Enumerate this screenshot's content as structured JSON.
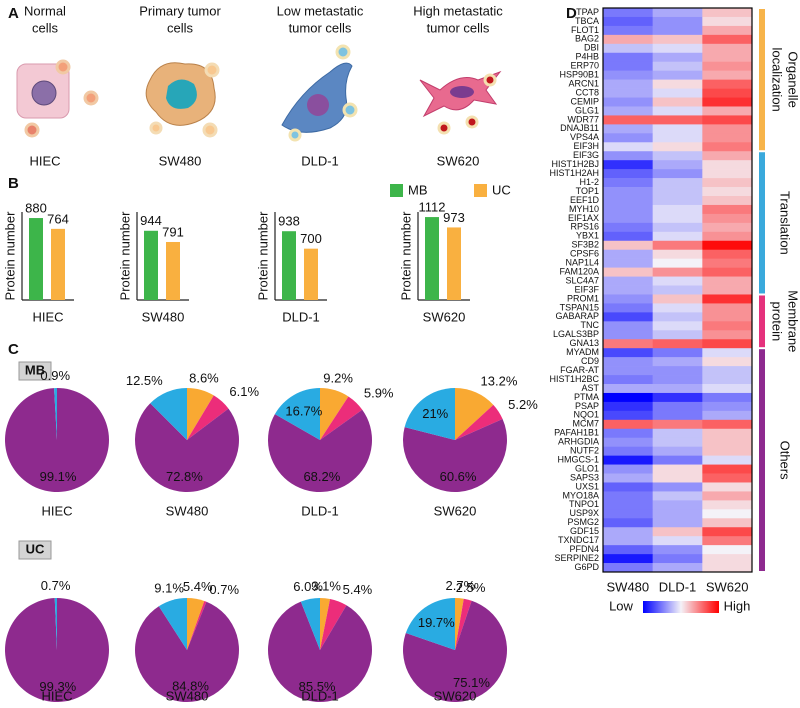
{
  "panel_labels": [
    "A",
    "B",
    "C",
    "D"
  ],
  "cells": [
    {
      "title": [
        "Normal",
        "cells"
      ],
      "line": "HIEC"
    },
    {
      "title": [
        "Primary tumor",
        "cells"
      ],
      "line": "SW480"
    },
    {
      "title": [
        "Low metastatic",
        "tumor cells"
      ],
      "line": "DLD-1"
    },
    {
      "title": [
        "High metastatic",
        "tumor cells"
      ],
      "line": "SW620"
    }
  ],
  "legend": [
    {
      "name": "MB",
      "color": "#3db54a"
    },
    {
      "name": "UC",
      "color": "#f9b040"
    }
  ],
  "pie_groups": [
    "MB",
    "UC"
  ],
  "chart_data": [
    {
      "type": "bar",
      "xlabel": "HIEC",
      "ylabel": "Protein number",
      "values": [
        880,
        764
      ],
      "ylim": [
        0,
        945
      ]
    },
    {
      "type": "bar",
      "xlabel": "SW480",
      "ylabel": "Protein number",
      "values": [
        944,
        791
      ],
      "ylim": [
        0,
        1200
      ]
    },
    {
      "type": "bar",
      "xlabel": "DLD-1",
      "ylabel": "Protein number",
      "values": [
        938,
        700
      ],
      "ylim": [
        0,
        1200
      ]
    },
    {
      "type": "bar",
      "xlabel": "SW620",
      "ylabel": "Protein number",
      "values": [
        1112,
        973
      ],
      "ylim": [
        0,
        1180
      ]
    },
    {
      "type": "pie",
      "label": "HIEC",
      "values": [
        99.1,
        0.9
      ],
      "value_labels": [
        "99.1%",
        "0.9%"
      ],
      "colors": [
        "#8e2a8e",
        "#29abe2"
      ]
    },
    {
      "type": "pie",
      "label": "SW480",
      "values": [
        8.6,
        6.1,
        72.8,
        12.5
      ],
      "value_labels": [
        "8.6%",
        "6.1%",
        "72.8%",
        "12.5%"
      ],
      "colors": [
        "#f9a932",
        "#ec2d7a",
        "#8e2a8e",
        "#29abe2"
      ]
    },
    {
      "type": "pie",
      "label": "DLD-1",
      "values": [
        9.2,
        5.9,
        68.2,
        16.7
      ],
      "value_labels": [
        "9.2%",
        "5.9%",
        "68.2%",
        "16.7%"
      ],
      "colors": [
        "#f9a932",
        "#ec2d7a",
        "#8e2a8e",
        "#29abe2"
      ]
    },
    {
      "type": "pie",
      "label": "SW620",
      "values": [
        13.2,
        5.2,
        60.6,
        21
      ],
      "value_labels": [
        "13.2%",
        "5.2%",
        "60.6%",
        "21%"
      ],
      "colors": [
        "#f9a932",
        "#ec2d7a",
        "#8e2a8e",
        "#29abe2"
      ]
    },
    {
      "type": "pie",
      "label": "HIEC",
      "values": [
        99.3,
        0.7
      ],
      "value_labels": [
        "99.3%",
        "0.7%"
      ],
      "colors": [
        "#8e2a8e",
        "#29abe2"
      ]
    },
    {
      "type": "pie",
      "label": "SW480",
      "values": [
        5.4,
        0.7,
        84.8,
        9.1
      ],
      "value_labels": [
        "5.4%",
        "0.7%",
        "84.8%",
        "9.1%"
      ],
      "colors": [
        "#f9a932",
        "#ec2d7a",
        "#8e2a8e",
        "#29abe2"
      ]
    },
    {
      "type": "pie",
      "label": "DLD-1",
      "values": [
        3.1,
        5.4,
        85.5,
        6.0
      ],
      "value_labels": [
        "3.1%",
        "5.4%",
        "85.5%",
        "6.0%"
      ],
      "colors": [
        "#f9a932",
        "#ec2d7a",
        "#8e2a8e",
        "#29abe2"
      ]
    },
    {
      "type": "pie",
      "label": "SW620",
      "values": [
        2.7,
        2.5,
        75.1,
        19.7
      ],
      "value_labels": [
        "2.7%",
        "2.5%",
        "75.1%",
        "19.7%"
      ],
      "colors": [
        "#f9a932",
        "#ec2d7a",
        "#8e2a8e",
        "#29abe2"
      ]
    },
    {
      "type": "heatmap",
      "columns": [
        "SW480",
        "DLD-1",
        "SW620"
      ],
      "zlim": [
        -1,
        1
      ],
      "colorbar": [
        "Low",
        "High"
      ],
      "colors": [
        "#0000ff",
        "#f4f2f8",
        "#ff0000"
      ],
      "groups": [
        {
          "label": [
            "Organelle",
            "localization"
          ],
          "color": "#f7b44a",
          "rows": [
            "TPAP",
            "TBCA",
            "FLOT1",
            "BAG2",
            "DBI",
            "P4HB",
            "ERP70",
            "HSP90B1",
            "ARCN1",
            "CCT8",
            "CEMIP",
            "GLG1",
            "WDR77",
            "DNAJB11",
            "VPS4A",
            "EIF3H"
          ],
          "values": [
            [
              -0.5,
              -0.3,
              0.2
            ],
            [
              -0.6,
              -0.4,
              0.1
            ],
            [
              -0.5,
              -0.4,
              0.3
            ],
            [
              0.3,
              0.2,
              0.6
            ],
            [
              -0.2,
              -0.1,
              0.3
            ],
            [
              -0.5,
              -0.3,
              0.3
            ],
            [
              -0.5,
              -0.2,
              0.4
            ],
            [
              -0.4,
              -0.3,
              0.3
            ],
            [
              -0.3,
              0.1,
              0.6
            ],
            [
              -0.3,
              -0.1,
              0.7
            ],
            [
              -0.4,
              0.2,
              0.8
            ],
            [
              -0.3,
              -0.1,
              0.3
            ],
            [
              0.6,
              0.6,
              0.7
            ],
            [
              -0.3,
              -0.1,
              0.4
            ],
            [
              -0.4,
              -0.1,
              0.4
            ],
            [
              -0.1,
              0.1,
              0.5
            ]
          ]
        },
        {
          "label": [
            "Translation"
          ],
          "color": "#3aa9dc",
          "rows": [
            "EIF3G",
            "HIST1H2BJ",
            "HIST1H2AH",
            "H1-2",
            "TOP1",
            "EEF1D",
            "MYH10",
            "EIF1AX",
            "RPS16",
            "YBX1",
            "SF3B2",
            "CPSF6",
            "NAP1L4",
            "FAM120A",
            "SLC4A7",
            "EIF3F"
          ],
          "values": [
            [
              -0.4,
              -0.2,
              0.3
            ],
            [
              -0.8,
              -0.3,
              0.1
            ],
            [
              -0.6,
              -0.4,
              0.1
            ],
            [
              -0.5,
              -0.2,
              0.2
            ],
            [
              -0.4,
              -0.2,
              0.1
            ],
            [
              -0.4,
              -0.2,
              0.2
            ],
            [
              -0.4,
              -0.1,
              0.5
            ],
            [
              -0.4,
              -0.1,
              0.4
            ],
            [
              -0.5,
              -0.2,
              0.3
            ],
            [
              -0.6,
              -0.1,
              0.4
            ],
            [
              0.2,
              0.5,
              0.95
            ],
            [
              -0.3,
              0.1,
              0.6
            ],
            [
              -0.3,
              0.0,
              0.5
            ],
            [
              0.2,
              0.4,
              0.6
            ],
            [
              -0.3,
              -0.1,
              0.3
            ],
            [
              -0.3,
              -0.2,
              0.3
            ]
          ]
        },
        {
          "label": [
            "Membrane",
            "protein"
          ],
          "color": "#e5317c",
          "rows": [
            "PROM1",
            "TSPAN15",
            "GABARAP",
            "TNC",
            "LGALS3BP",
            "GNA13"
          ],
          "values": [
            [
              -0.4,
              0.2,
              0.8
            ],
            [
              -0.5,
              -0.1,
              0.4
            ],
            [
              -0.7,
              -0.2,
              0.4
            ],
            [
              -0.4,
              -0.1,
              0.5
            ],
            [
              -0.4,
              -0.2,
              0.4
            ],
            [
              0.5,
              0.6,
              0.7
            ]
          ]
        },
        {
          "label": [
            "Others"
          ],
          "color": "#8e2a8f",
          "rows": [
            "MYADM",
            "CD9",
            "FGAR-AT",
            "HIST1H2BC",
            "AST",
            "PTMA",
            "PSAP",
            "NQO1",
            "MCM7",
            "PAFAH1B1",
            "ARHGDIA",
            "NUTF2",
            "HMGCS-1",
            "GLO1",
            "SAPS3",
            "UXS1",
            "MYO18A",
            "TNPO1",
            "USP9X",
            "PSMG2",
            "GDF15",
            "TXNDC17",
            "PFDN4",
            "SERPINE2",
            "G6PD"
          ],
          "values": [
            [
              -0.7,
              -0.5,
              -0.1
            ],
            [
              -0.4,
              -0.3,
              0.1
            ],
            [
              -0.4,
              -0.4,
              -0.2
            ],
            [
              -0.5,
              -0.4,
              -0.2
            ],
            [
              -0.3,
              -0.3,
              -0.1
            ],
            [
              -1.0,
              -0.8,
              -0.5
            ],
            [
              -0.8,
              -0.5,
              -0.4
            ],
            [
              -0.7,
              -0.5,
              -0.3
            ],
            [
              0.6,
              0.5,
              0.6
            ],
            [
              -0.5,
              -0.2,
              0.2
            ],
            [
              -0.4,
              -0.2,
              0.2
            ],
            [
              -0.5,
              -0.3,
              0.2
            ],
            [
              -0.9,
              -0.5,
              -0.1
            ],
            [
              -0.4,
              0.1,
              0.7
            ],
            [
              -0.3,
              0.1,
              0.6
            ],
            [
              -0.6,
              -0.4,
              0.1
            ],
            [
              -0.5,
              -0.2,
              0.3
            ],
            [
              -0.5,
              -0.3,
              0.1
            ],
            [
              -0.5,
              -0.3,
              0.0
            ],
            [
              -0.6,
              -0.3,
              0.2
            ],
            [
              -0.3,
              0.2,
              0.7
            ],
            [
              -0.3,
              -0.1,
              0.5
            ],
            [
              -0.6,
              -0.4,
              0.0
            ],
            [
              -0.9,
              -0.5,
              0.1
            ],
            [
              -0.5,
              -0.3,
              0.1
            ]
          ]
        }
      ]
    }
  ]
}
